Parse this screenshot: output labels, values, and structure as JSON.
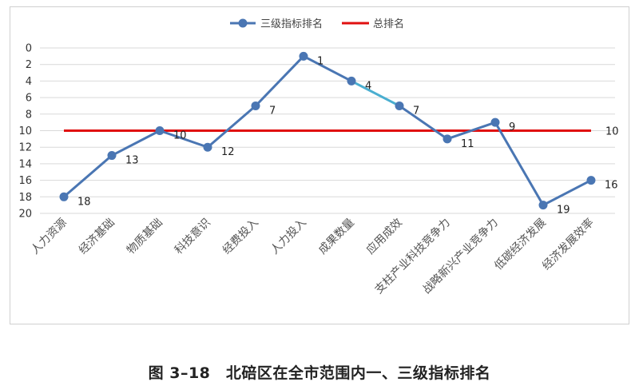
{
  "chart_data": {
    "type": "line",
    "categories": [
      "人力资源",
      "经济基础",
      "物质基础",
      "科技意识",
      "经费投入",
      "人力投入",
      "成果数量",
      "应用成效",
      "支柱产业科技竞争力",
      "战略新兴产业竞争力",
      "低碳经济发展",
      "经济发展效率"
    ],
    "series": [
      {
        "name": "三级指标排名",
        "values": [
          18,
          13,
          10,
          12,
          7,
          1,
          4,
          7,
          11,
          9,
          19,
          16
        ],
        "color": "#4a76b3",
        "highlight_segment_color": "#4aaed0"
      },
      {
        "name": "总排名",
        "values": [
          10,
          10,
          10,
          10,
          10,
          10,
          10,
          10,
          10,
          10,
          10,
          10
        ],
        "color": "#e01010",
        "end_label": "10"
      }
    ],
    "yticks": [
      "0",
      "2",
      "4",
      "6",
      "8",
      "10",
      "12",
      "14",
      "16",
      "18",
      "20"
    ],
    "ylim": [
      0,
      20
    ],
    "y_inverted": true,
    "grid": true,
    "legend_position": "top"
  },
  "caption": "图 3–18　北碚区在全市范围内一、三级指标排名"
}
